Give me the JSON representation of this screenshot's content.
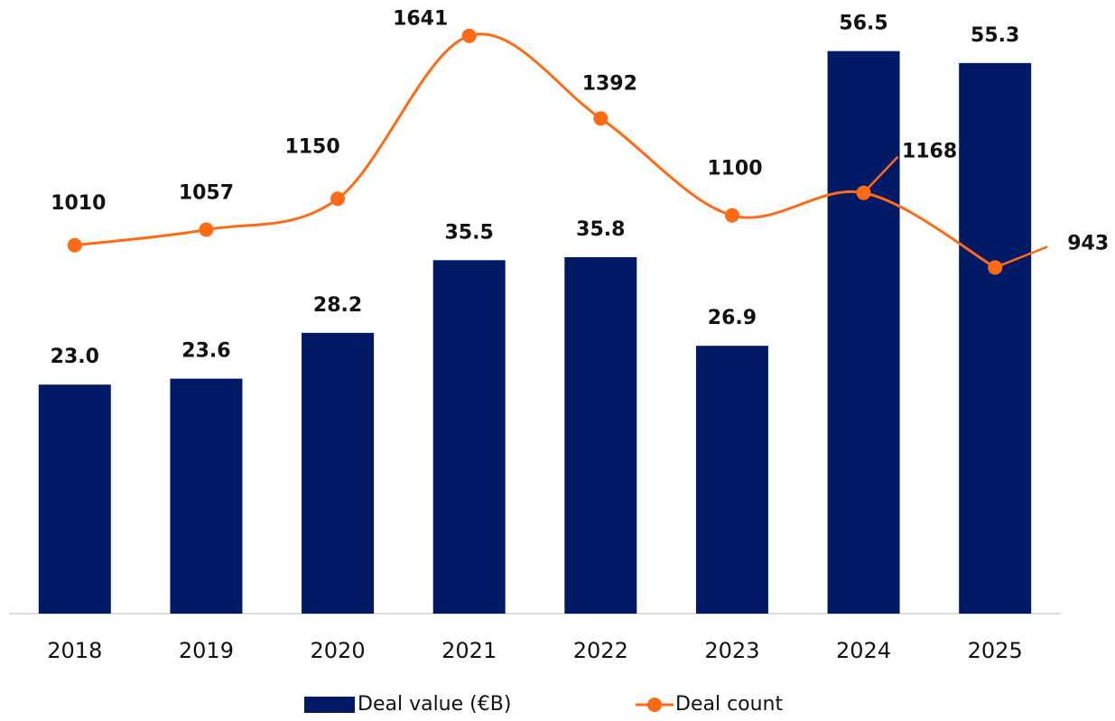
{
  "chart_data": {
    "type": "bar",
    "categories": [
      "2018",
      "2019",
      "2020",
      "2021",
      "2022",
      "2023",
      "2024",
      "2025"
    ],
    "series": [
      {
        "name": "Deal value (€B)",
        "type": "bar",
        "color": "#001a66",
        "values": [
          23.0,
          23.6,
          28.2,
          35.5,
          35.8,
          26.9,
          56.5,
          55.3
        ],
        "value_labels": [
          "23.0",
          "23.6",
          "28.2",
          "35.5",
          "35.8",
          "26.9",
          "56.5",
          "55.3"
        ]
      },
      {
        "name": "Deal count",
        "type": "line",
        "axis": "y2",
        "color": "#ff6a13",
        "values": [
          1010,
          1057,
          1150,
          1641,
          1392,
          1100,
          1168,
          943
        ]
      }
    ],
    "ylim": [
      0,
      60
    ],
    "y2lim": [
      -100,
      1700
    ],
    "legend": "bottom"
  }
}
